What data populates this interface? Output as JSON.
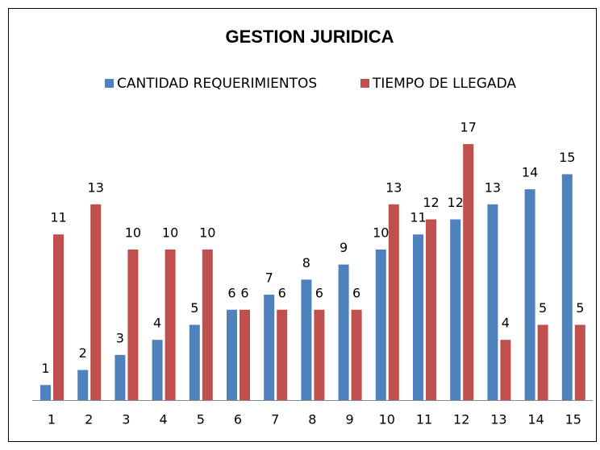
{
  "chart_data": {
    "type": "bar",
    "title": "GESTION JURIDICA",
    "categories": [
      "1",
      "2",
      "3",
      "4",
      "5",
      "6",
      "7",
      "8",
      "9",
      "10",
      "11",
      "12",
      "13",
      "14",
      "15"
    ],
    "series": [
      {
        "name": "CANTIDAD REQUERIMIENTOS",
        "color": "#4f81bd",
        "values": [
          1,
          2,
          3,
          4,
          5,
          6,
          7,
          8,
          9,
          10,
          11,
          12,
          13,
          14,
          15
        ]
      },
      {
        "name": "TIEMPO DE LLEGADA",
        "color": "#c0504d",
        "values": [
          11,
          13,
          10,
          10,
          10,
          6,
          6,
          6,
          6,
          13,
          12,
          17,
          4,
          5,
          5
        ]
      }
    ],
    "legend": "top"
  }
}
